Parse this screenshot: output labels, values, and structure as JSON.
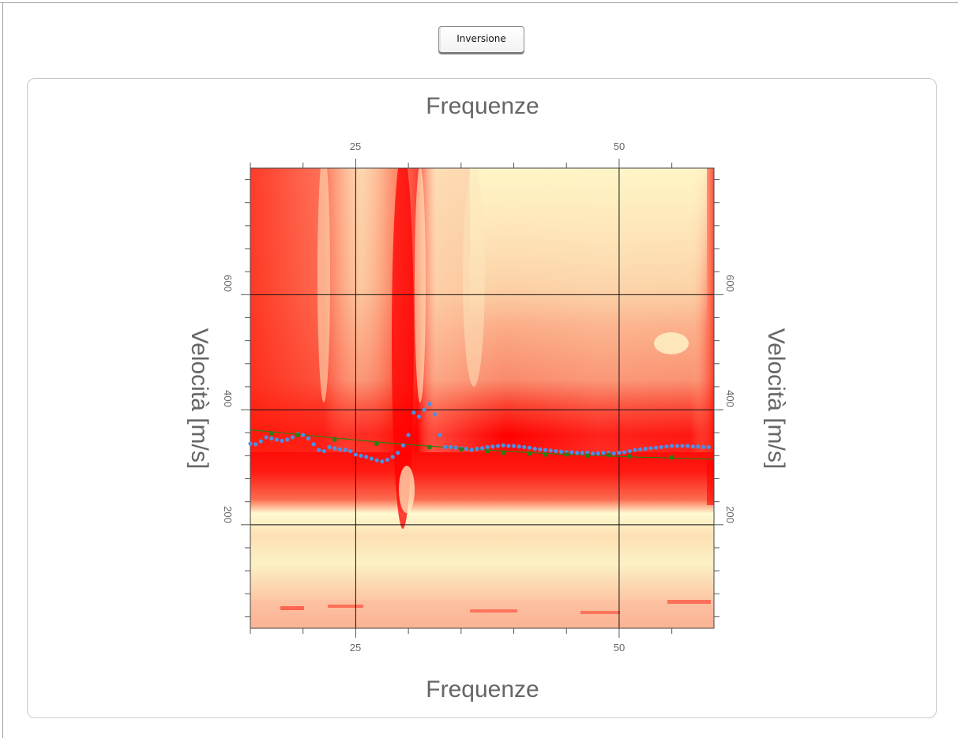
{
  "toolbar": {
    "inversion_label": "Inversione"
  },
  "chart_data": {
    "type": "heatmap",
    "title": "",
    "xlabel": "Frequenze",
    "ylabel": "Velocità [m/s]",
    "x_axis": {
      "range": [
        15,
        59
      ],
      "major_ticks": [
        25,
        50
      ],
      "tick_labels": [
        "25",
        "50"
      ]
    },
    "y_axis": {
      "range": [
        20,
        820
      ],
      "major_ticks": [
        200,
        400,
        600
      ],
      "tick_labels": [
        "200",
        "400",
        "600"
      ]
    },
    "grid": true,
    "colormap": [
      "#ff0000",
      "#ff6a4c",
      "#fdbb8c",
      "#fffccc"
    ],
    "observed_dispersion": {
      "name": "",
      "color": "#4a90e8",
      "x": [
        15.0,
        15.5,
        16.0,
        16.5,
        17.0,
        17.5,
        18.0,
        18.5,
        19.0,
        19.5,
        20.0,
        20.5,
        21.0,
        21.5,
        22.0,
        22.5,
        23.0,
        23.5,
        24.0,
        24.5,
        25.0,
        25.5,
        26.0,
        26.5,
        27.0,
        27.5,
        28.0,
        28.5,
        29.0,
        29.5,
        30.0,
        30.5,
        31.0,
        31.5,
        32.0,
        32.5,
        33.0,
        33.5,
        34.0,
        34.5,
        35.0,
        35.5,
        36.0,
        36.5,
        37.0,
        37.5,
        38.0,
        38.5,
        39.0,
        39.5,
        40.0,
        40.5,
        41.0,
        41.5,
        42.0,
        42.5,
        43.0,
        43.5,
        44.0,
        44.5,
        45.0,
        45.5,
        46.0,
        46.5,
        47.0,
        47.5,
        48.0,
        48.5,
        49.0,
        49.5,
        50.0,
        50.5,
        51.0,
        51.5,
        52.0,
        52.5,
        53.0,
        53.5,
        54.0,
        54.5,
        55.0,
        55.5,
        56.0,
        56.5,
        57.0,
        57.5,
        58.0,
        58.5
      ],
      "y": [
        341,
        340,
        345,
        352,
        350,
        348,
        346,
        348,
        352,
        358,
        356,
        350,
        340,
        330,
        328,
        335,
        333,
        331,
        330,
        328,
        322,
        320,
        318,
        315,
        312,
        310,
        313,
        318,
        325,
        338,
        356,
        395,
        388,
        400,
        410,
        392,
        356,
        335,
        335,
        334,
        333,
        332,
        330,
        332,
        333,
        335,
        336,
        337,
        338,
        337,
        337,
        336,
        335,
        334,
        332,
        331,
        330,
        329,
        328,
        327,
        326,
        326,
        325,
        325,
        325,
        324,
        324,
        325,
        325,
        324,
        325,
        326,
        328,
        330,
        331,
        332,
        333,
        334,
        335,
        336,
        337,
        337,
        337,
        337,
        336,
        336,
        335,
        335
      ]
    },
    "fitted_curve": {
      "name": "",
      "color": "#2e7d16",
      "x": [
        15,
        19,
        23,
        27,
        31,
        35,
        39,
        43,
        47,
        51,
        55,
        59
      ],
      "y": [
        365,
        358,
        351,
        344,
        338,
        333,
        328,
        324,
        321,
        318,
        316,
        314
      ]
    },
    "fitted_markers": {
      "x": [
        17,
        19.5,
        23,
        27,
        32,
        35,
        37.5,
        39,
        41.5,
        43,
        45,
        47,
        49,
        51,
        55
      ],
      "y": [
        359,
        356,
        348,
        341,
        335,
        331,
        328,
        325,
        324,
        322,
        322,
        320,
        321,
        319,
        317
      ]
    }
  }
}
